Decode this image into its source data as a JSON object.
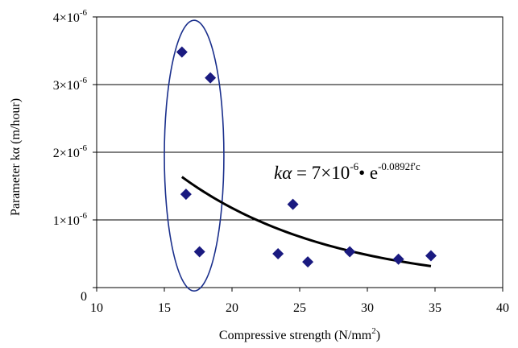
{
  "chart_data": {
    "type": "scatter",
    "xlabel": "Compressive strength (N/mm",
    "xlabel_sup": "2",
    "xlabel_tail": ")",
    "ylabel": "Parameter   kα (m/hour)",
    "xlim": [
      10,
      40
    ],
    "ylim": [
      0,
      4e-06
    ],
    "x_ticks": [
      {
        "value": 10,
        "label": "10"
      },
      {
        "value": 15,
        "label": "15"
      },
      {
        "value": 20,
        "label": "20"
      },
      {
        "value": 25,
        "label": "25"
      },
      {
        "value": 30,
        "label": "30"
      },
      {
        "value": 35,
        "label": "35"
      },
      {
        "value": 40,
        "label": "40"
      }
    ],
    "y_ticks": [
      {
        "value": 0,
        "label": "0",
        "exp": ""
      },
      {
        "value": 1e-06,
        "label": "1×10",
        "exp": "-6"
      },
      {
        "value": 2e-06,
        "label": "2×10",
        "exp": "-6"
      },
      {
        "value": 3e-06,
        "label": "3×10",
        "exp": "-6"
      },
      {
        "value": 4e-06,
        "label": "4×10",
        "exp": "-6"
      }
    ],
    "grid": "horizontal",
    "marker_color": "#1a1a80",
    "points": [
      {
        "x": 16.3,
        "y": 3.48e-06
      },
      {
        "x": 18.4,
        "y": 3.1e-06
      },
      {
        "x": 16.6,
        "y": 1.38e-06
      },
      {
        "x": 17.6,
        "y": 5.3e-07
      },
      {
        "x": 23.4,
        "y": 5e-07
      },
      {
        "x": 24.5,
        "y": 1.23e-06
      },
      {
        "x": 25.6,
        "y": 3.8e-07
      },
      {
        "x": 28.7,
        "y": 5.3e-07
      },
      {
        "x": 32.3,
        "y": 4.2e-07
      },
      {
        "x": 34.7,
        "y": 4.7e-07
      }
    ],
    "fit": {
      "a": 7e-06,
      "b": -0.0892,
      "x_range": [
        16.3,
        34.7
      ],
      "equation": {
        "lhs": "kα",
        "mid": " = 7×10",
        "coef_exp": "-6",
        "base": "• e",
        "exp": "-0.0892f'c"
      }
    },
    "highlight_ellipse": {
      "cx": 17.2,
      "cy": 1.95e-06,
      "rx": 2.2,
      "ry": 2e-06
    }
  }
}
